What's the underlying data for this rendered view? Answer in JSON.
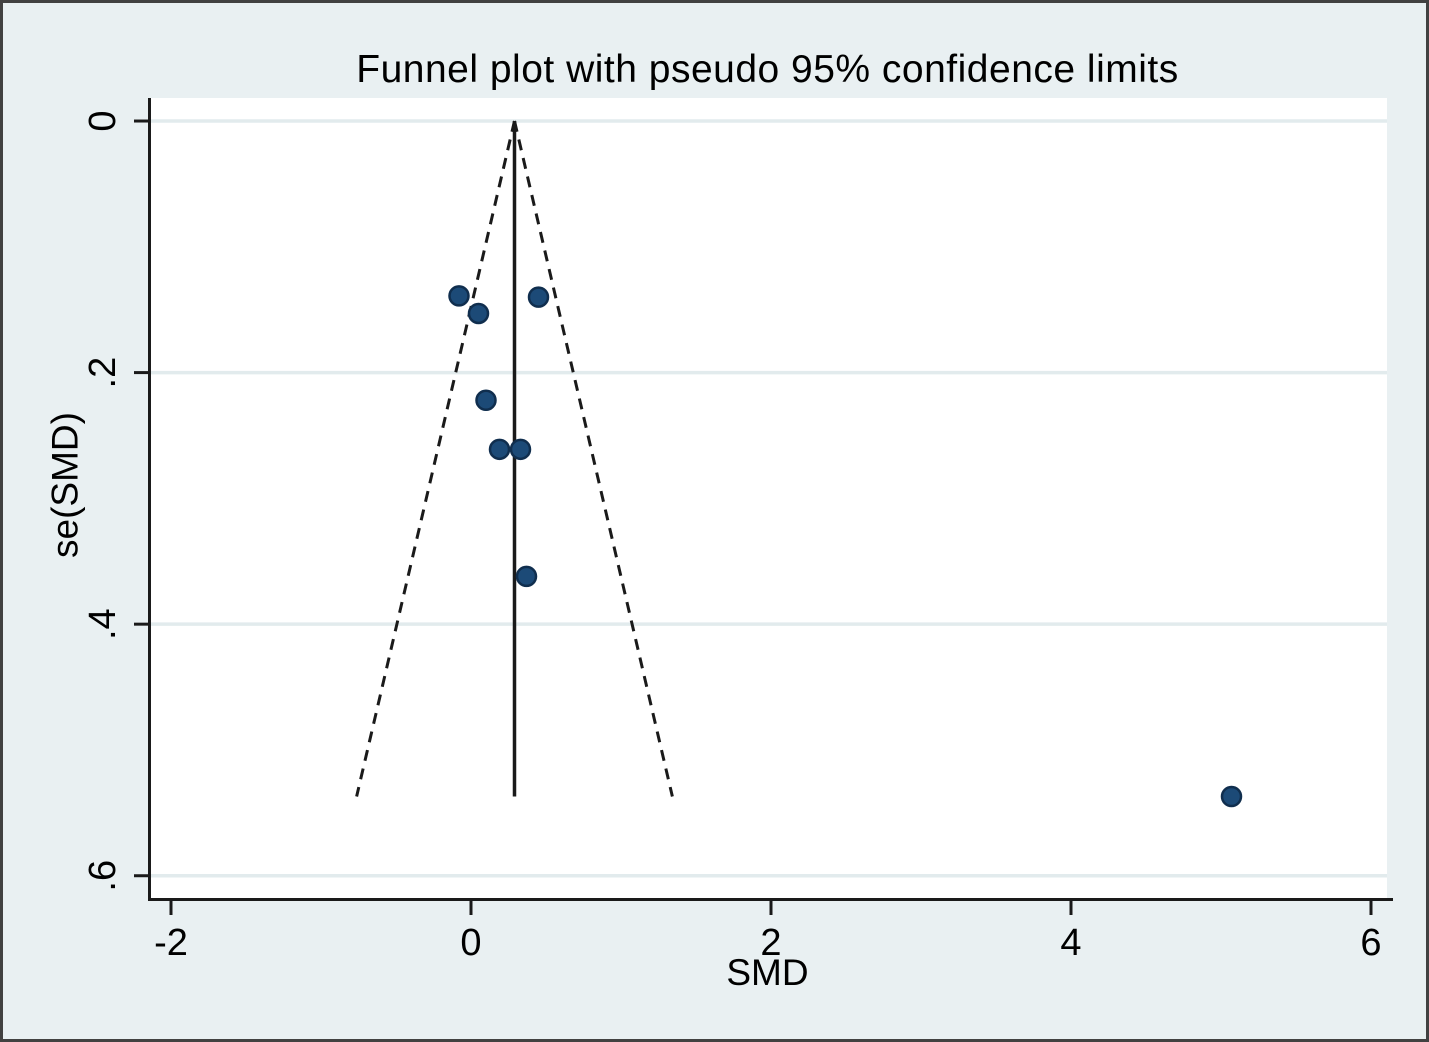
{
  "figure": {
    "title": "Funnel plot with pseudo 95% confidence limits",
    "x_axis_title": "SMD",
    "y_axis_title": "se(SMD)"
  },
  "chart_data": {
    "type": "scatter",
    "subtype": "funnel-plot",
    "title": "Funnel plot with pseudo 95% confidence limits",
    "xlabel": "SMD",
    "ylabel": "se(SMD)",
    "x_ticks": [
      {
        "value": -2,
        "label": "-2"
      },
      {
        "value": 0,
        "label": "0"
      },
      {
        "value": 2,
        "label": "2"
      },
      {
        "value": 4,
        "label": "4"
      },
      {
        "value": 6,
        "label": "6"
      }
    ],
    "y_ticks": [
      {
        "value": 0,
        "label": "0"
      },
      {
        "value": 0.2,
        "label": ".2"
      },
      {
        "value": 0.4,
        "label": ".4"
      },
      {
        "value": 0.6,
        "label": ".6"
      }
    ],
    "xlim": [
      -2.1333,
      6.1067
    ],
    "ylim": [
      -0.0183,
      0.6177
    ],
    "y_axis_inverted_se_downward": true,
    "grid": "horizontal",
    "legend": "none",
    "points": [
      {
        "smd": -0.08,
        "se": 0.139
      },
      {
        "smd": 0.05,
        "se": 0.153
      },
      {
        "smd": 0.45,
        "se": 0.14
      },
      {
        "smd": 0.1,
        "se": 0.222
      },
      {
        "smd": 0.19,
        "se": 0.261
      },
      {
        "smd": 0.33,
        "se": 0.261
      },
      {
        "smd": 0.37,
        "se": 0.362
      },
      {
        "smd": 5.07,
        "se": 0.537
      }
    ],
    "center_line": {
      "smd": 0.29,
      "se_from": 0,
      "se_to": 0.537,
      "style": "solid"
    },
    "pseudo_ci": {
      "multiplier": 1.96,
      "max_se": 0.537,
      "style": "dashed"
    },
    "colors": {
      "background": "#e9f0f2",
      "plot_background": "#ffffff",
      "grid": "#e2ebed",
      "axis": "#1a1a1a",
      "text": "#000000",
      "marker_fill": "#1c4a77",
      "marker_stroke": "#102e4e",
      "outer_border": "#414141"
    },
    "marker": {
      "shape": "circle",
      "radius_px": 9.5
    }
  }
}
